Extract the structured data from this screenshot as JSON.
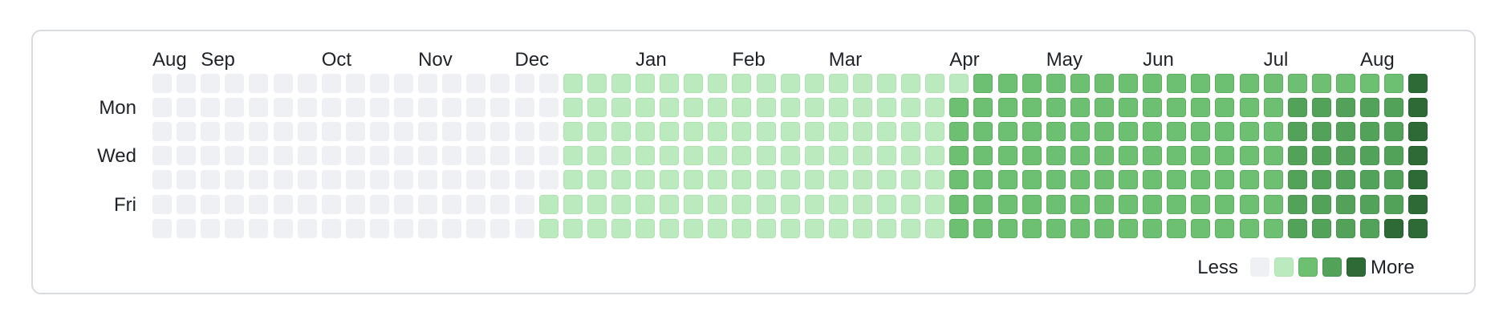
{
  "chart_data": {
    "type": "heatmap",
    "title": "",
    "months": [
      {
        "label": "Aug",
        "week": 0
      },
      {
        "label": "Sep",
        "week": 2
      },
      {
        "label": "Oct",
        "week": 7
      },
      {
        "label": "Nov",
        "week": 11
      },
      {
        "label": "Dec",
        "week": 15
      },
      {
        "label": "Jan",
        "week": 20
      },
      {
        "label": "Feb",
        "week": 24
      },
      {
        "label": "Mar",
        "week": 28
      },
      {
        "label": "Apr",
        "week": 33
      },
      {
        "label": "May",
        "week": 37
      },
      {
        "label": "Jun",
        "week": 41
      },
      {
        "label": "Jul",
        "week": 46
      },
      {
        "label": "Aug",
        "week": 50
      }
    ],
    "weekday_labels": [
      {
        "label": "Mon",
        "row": 1
      },
      {
        "label": "Wed",
        "row": 3
      },
      {
        "label": "Fri",
        "row": 5
      }
    ],
    "legend": {
      "less": "Less",
      "more": "More",
      "levels": [
        0,
        1,
        2,
        3,
        4
      ]
    },
    "colors": [
      "#eff0f4",
      "#bbeabe",
      "#6dbf72",
      "#52a25a",
      "#2e6a36"
    ],
    "weeks": [
      [
        0,
        0,
        0,
        0,
        0,
        0,
        0
      ],
      [
        0,
        0,
        0,
        0,
        0,
        0,
        0
      ],
      [
        0,
        0,
        0,
        0,
        0,
        0,
        0
      ],
      [
        0,
        0,
        0,
        0,
        0,
        0,
        0
      ],
      [
        0,
        0,
        0,
        0,
        0,
        0,
        0
      ],
      [
        0,
        0,
        0,
        0,
        0,
        0,
        0
      ],
      [
        0,
        0,
        0,
        0,
        0,
        0,
        0
      ],
      [
        0,
        0,
        0,
        0,
        0,
        0,
        0
      ],
      [
        0,
        0,
        0,
        0,
        0,
        0,
        0
      ],
      [
        0,
        0,
        0,
        0,
        0,
        0,
        0
      ],
      [
        0,
        0,
        0,
        0,
        0,
        0,
        0
      ],
      [
        0,
        0,
        0,
        0,
        0,
        0,
        0
      ],
      [
        0,
        0,
        0,
        0,
        0,
        0,
        0
      ],
      [
        0,
        0,
        0,
        0,
        0,
        0,
        0
      ],
      [
        0,
        0,
        0,
        0,
        0,
        0,
        0
      ],
      [
        0,
        0,
        0,
        0,
        0,
        0,
        0
      ],
      [
        0,
        0,
        0,
        0,
        0,
        1,
        1
      ],
      [
        1,
        1,
        1,
        1,
        1,
        1,
        1
      ],
      [
        1,
        1,
        1,
        1,
        1,
        1,
        1
      ],
      [
        1,
        1,
        1,
        1,
        1,
        1,
        1
      ],
      [
        1,
        1,
        1,
        1,
        1,
        1,
        1
      ],
      [
        1,
        1,
        1,
        1,
        1,
        1,
        1
      ],
      [
        1,
        1,
        1,
        1,
        1,
        1,
        1
      ],
      [
        1,
        1,
        1,
        1,
        1,
        1,
        1
      ],
      [
        1,
        1,
        1,
        1,
        1,
        1,
        1
      ],
      [
        1,
        1,
        1,
        1,
        1,
        1,
        1
      ],
      [
        1,
        1,
        1,
        1,
        1,
        1,
        1
      ],
      [
        1,
        1,
        1,
        1,
        1,
        1,
        1
      ],
      [
        1,
        1,
        1,
        1,
        1,
        1,
        1
      ],
      [
        1,
        1,
        1,
        1,
        1,
        1,
        1
      ],
      [
        1,
        1,
        1,
        1,
        1,
        1,
        1
      ],
      [
        1,
        1,
        1,
        1,
        1,
        1,
        1
      ],
      [
        1,
        1,
        1,
        1,
        1,
        1,
        1
      ],
      [
        1,
        2,
        2,
        2,
        2,
        2,
        2
      ],
      [
        2,
        2,
        2,
        2,
        2,
        2,
        2
      ],
      [
        2,
        2,
        2,
        2,
        2,
        2,
        2
      ],
      [
        2,
        2,
        2,
        2,
        2,
        2,
        2
      ],
      [
        2,
        2,
        2,
        2,
        2,
        2,
        2
      ],
      [
        2,
        2,
        2,
        2,
        2,
        2,
        2
      ],
      [
        2,
        2,
        2,
        2,
        2,
        2,
        2
      ],
      [
        2,
        2,
        2,
        2,
        2,
        2,
        2
      ],
      [
        2,
        2,
        2,
        2,
        2,
        2,
        2
      ],
      [
        2,
        2,
        2,
        2,
        2,
        2,
        2
      ],
      [
        2,
        2,
        2,
        2,
        2,
        2,
        2
      ],
      [
        2,
        2,
        2,
        2,
        2,
        2,
        2
      ],
      [
        2,
        2,
        2,
        2,
        2,
        2,
        2
      ],
      [
        2,
        2,
        2,
        2,
        2,
        2,
        2
      ],
      [
        2,
        3,
        3,
        3,
        3,
        3,
        3
      ],
      [
        2,
        3,
        3,
        3,
        3,
        3,
        3
      ],
      [
        2,
        3,
        3,
        3,
        3,
        3,
        3
      ],
      [
        2,
        3,
        3,
        3,
        3,
        3,
        3
      ],
      [
        2,
        3,
        3,
        3,
        3,
        3,
        4
      ],
      [
        4,
        4,
        4,
        4,
        4,
        4,
        4
      ]
    ]
  }
}
